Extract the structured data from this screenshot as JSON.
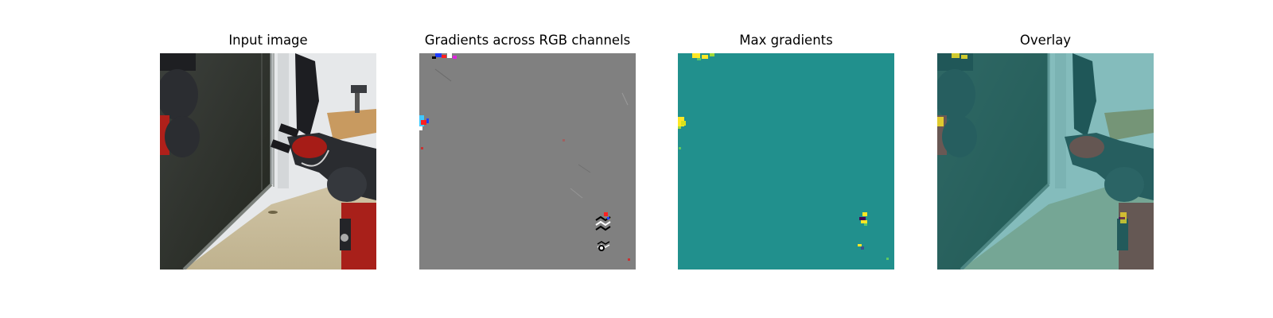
{
  "figure": {
    "panels": [
      {
        "title": "Input image"
      },
      {
        "title": "Gradients across RGB channels"
      },
      {
        "title": "Max gradients"
      },
      {
        "title": "Overlay"
      }
    ]
  },
  "colors": {
    "background": "#ffffff",
    "gradient_gray": "#808080",
    "heatmap_teal": "#21908d",
    "heatmap_yellow": "#fde725",
    "robot_red": "#b0201a",
    "robot_dark": "#2a2c30",
    "floor": "#c8bc9c",
    "wall": "#e9ecef",
    "desk": "#c89a60"
  }
}
